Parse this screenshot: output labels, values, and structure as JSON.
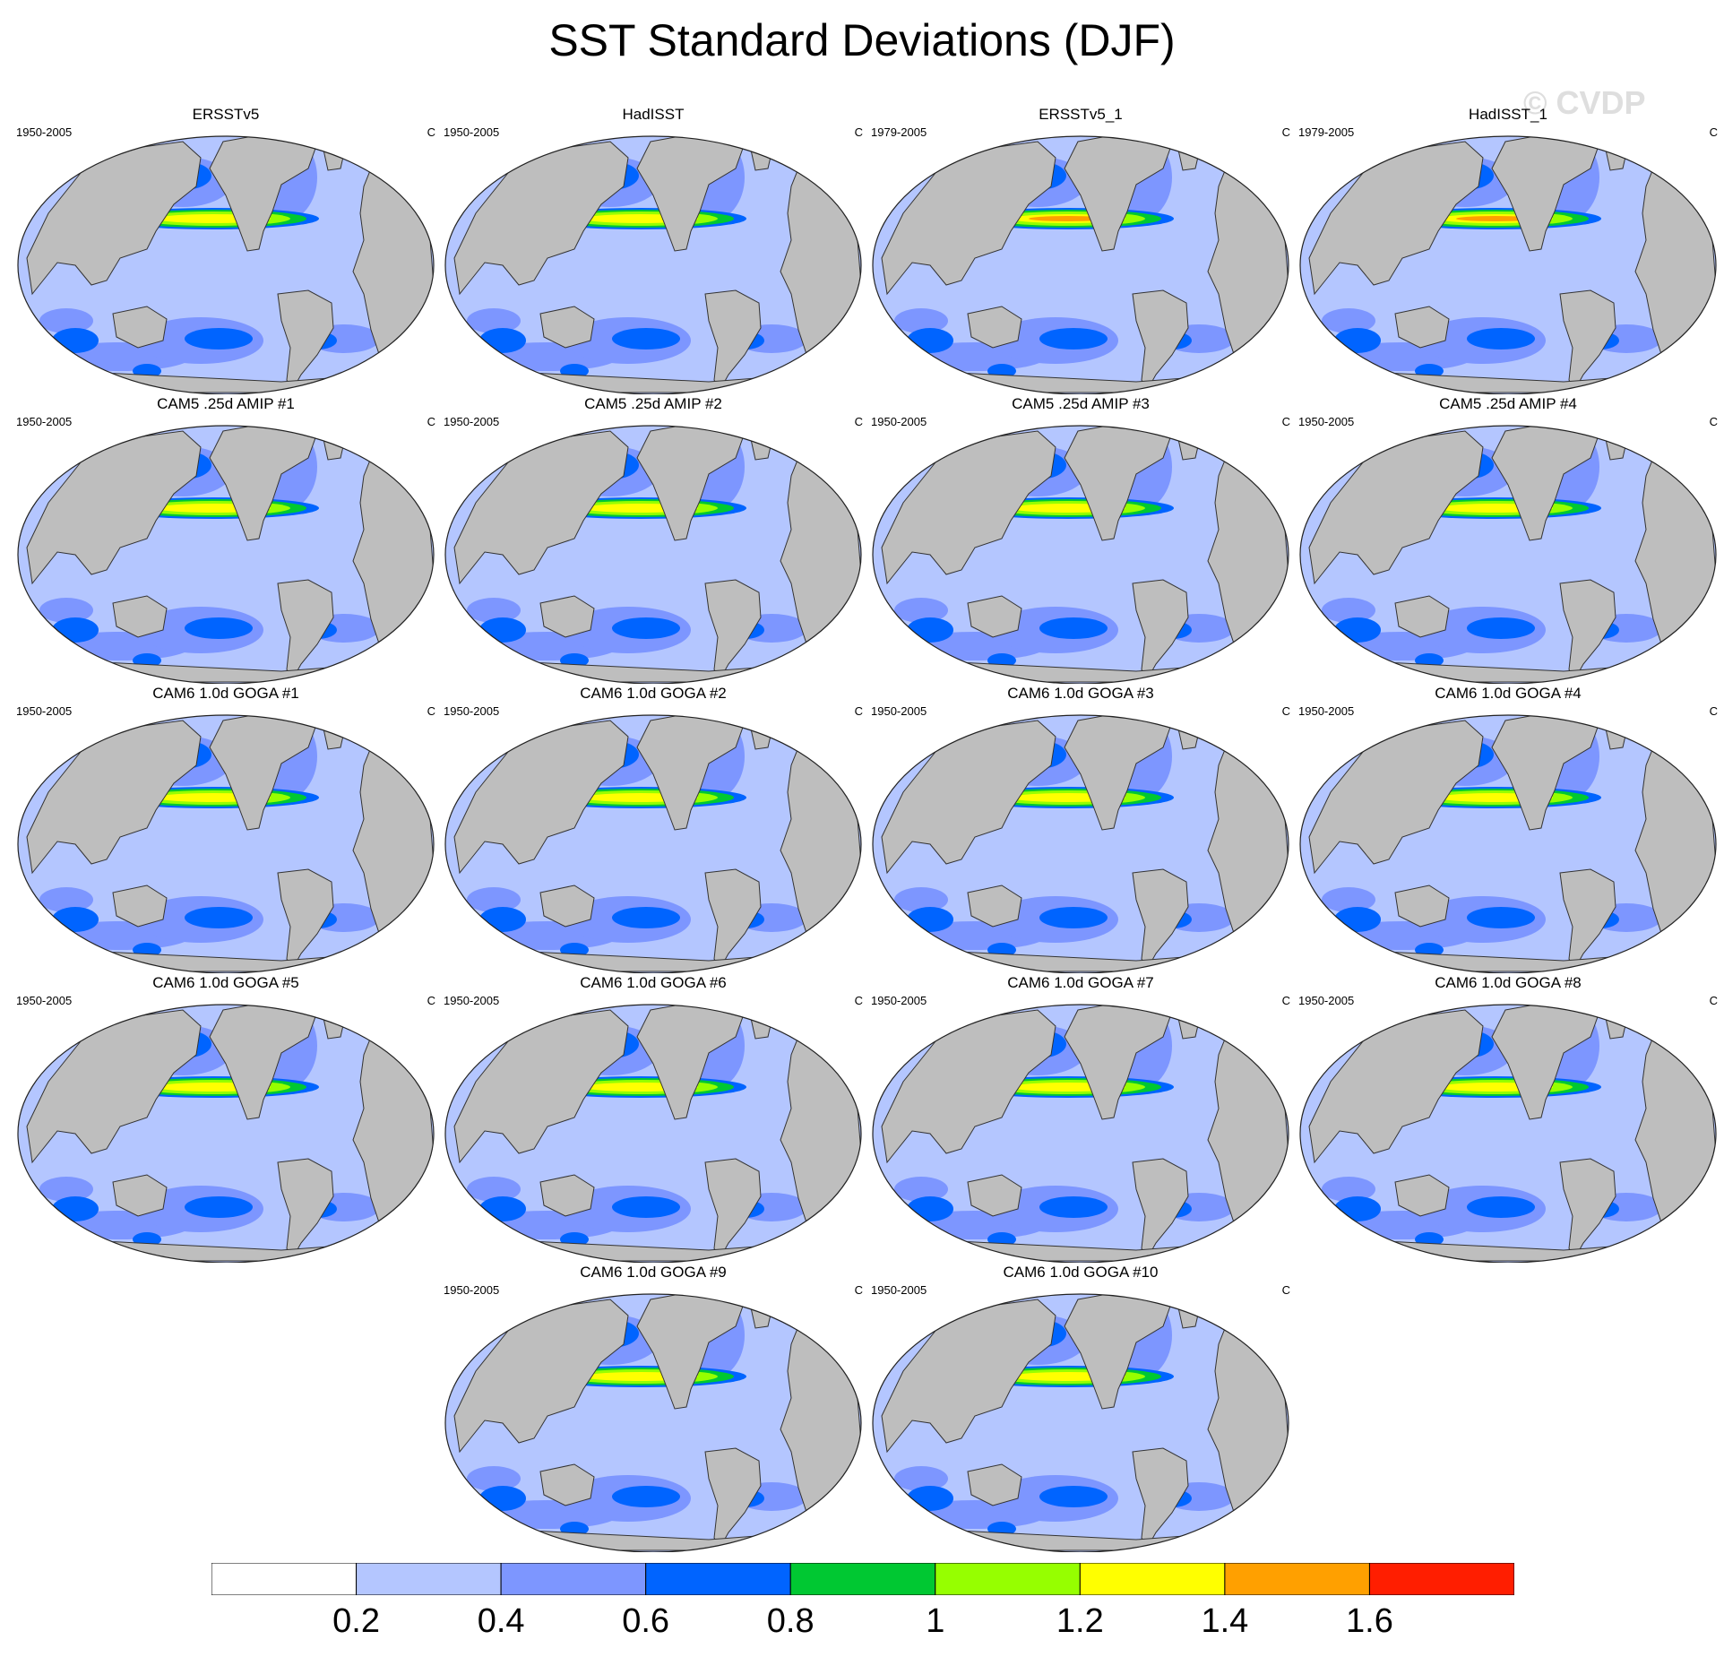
{
  "title": "SST Standard Deviations (DJF)",
  "watermark": "© CVDP",
  "chart_data": {
    "type": "heatmap",
    "title": "SST Standard Deviations (DJF)",
    "units": "C",
    "colorbar": {
      "levels": [
        0.2,
        0.4,
        0.6,
        0.8,
        1,
        1.2,
        1.4,
        1.6
      ],
      "labels": [
        "0.2",
        "0.4",
        "0.6",
        "0.8",
        "1",
        "1.2",
        "1.4",
        "1.6"
      ],
      "colors": [
        "#ffffff",
        "#b4c6ff",
        "#7d96ff",
        "#0064ff",
        "#00c832",
        "#96ff00",
        "#ffff00",
        "#ffa000",
        "#ff1e00"
      ]
    },
    "panels": [
      {
        "title": "ERSSTv5",
        "period": "1950-2005",
        "units": "C",
        "enso_peak": 1.2
      },
      {
        "title": "HadISST",
        "period": "1950-2005",
        "units": "C",
        "enso_peak": 1.2
      },
      {
        "title": "ERSSTv5_1",
        "period": "1979-2005",
        "units": "C",
        "enso_peak": 1.4
      },
      {
        "title": "HadISST_1",
        "period": "1979-2005",
        "units": "C",
        "enso_peak": 1.4
      },
      {
        "title": "CAM5 .25d AMIP #1",
        "period": "1950-2005",
        "units": "C",
        "enso_peak": 1.2
      },
      {
        "title": "CAM5 .25d AMIP #2",
        "period": "1950-2005",
        "units": "C",
        "enso_peak": 1.2
      },
      {
        "title": "CAM5 .25d AMIP #3",
        "period": "1950-2005",
        "units": "C",
        "enso_peak": 1.2
      },
      {
        "title": "CAM5 .25d AMIP #4",
        "period": "1950-2005",
        "units": "C",
        "enso_peak": 1.2
      },
      {
        "title": "CAM6 1.0d GOGA #1",
        "period": "1950-2005",
        "units": "C",
        "enso_peak": 1.2
      },
      {
        "title": "CAM6 1.0d GOGA #2",
        "period": "1950-2005",
        "units": "C",
        "enso_peak": 1.2
      },
      {
        "title": "CAM6 1.0d GOGA #3",
        "period": "1950-2005",
        "units": "C",
        "enso_peak": 1.2
      },
      {
        "title": "CAM6 1.0d GOGA #4",
        "period": "1950-2005",
        "units": "C",
        "enso_peak": 1.2
      },
      {
        "title": "CAM6 1.0d GOGA #5",
        "period": "1950-2005",
        "units": "C",
        "enso_peak": 1.2
      },
      {
        "title": "CAM6 1.0d GOGA #6",
        "period": "1950-2005",
        "units": "C",
        "enso_peak": 1.2
      },
      {
        "title": "CAM6 1.0d GOGA #7",
        "period": "1950-2005",
        "units": "C",
        "enso_peak": 1.2
      },
      {
        "title": "CAM6 1.0d GOGA #8",
        "period": "1950-2005",
        "units": "C",
        "enso_peak": 1.2
      },
      {
        "title": "CAM6 1.0d GOGA #9",
        "period": "1950-2005",
        "units": "C",
        "enso_peak": 1.2
      },
      {
        "title": "CAM6 1.0d GOGA #10",
        "period": "1950-2005",
        "units": "C",
        "enso_peak": 1.2
      }
    ]
  }
}
